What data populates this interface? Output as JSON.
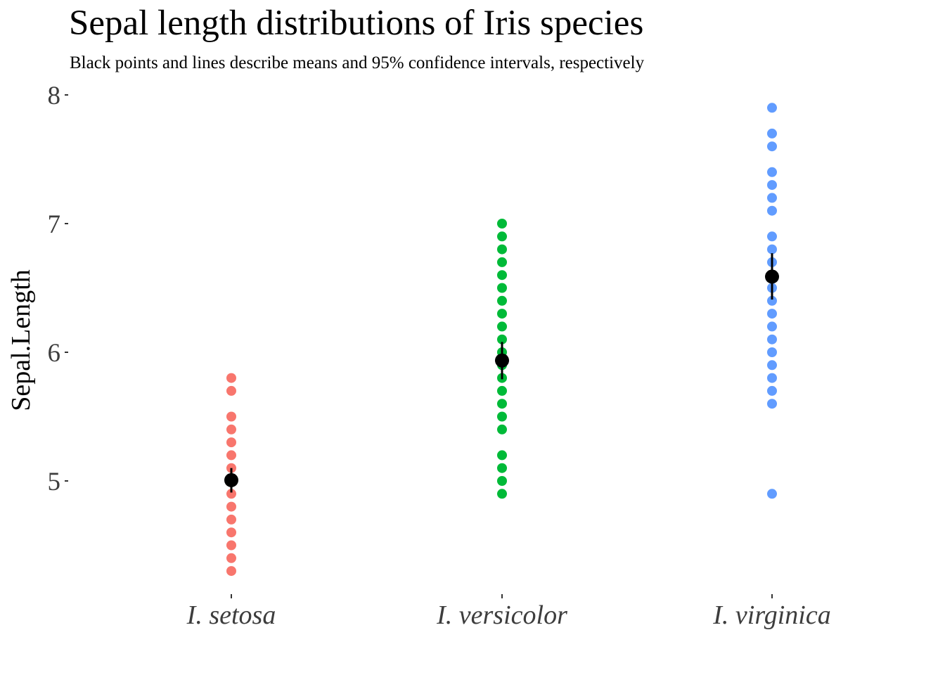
{
  "chart_data": {
    "type": "scatter",
    "title": "Sepal length distributions of Iris species",
    "subtitle": "Black points and lines describe means and 95% confidence intervals, respectively",
    "xlabel": "",
    "ylabel": "Sepal.Length",
    "ylim": [
      4.12,
      8.08
    ],
    "yticks": [
      "5",
      "6",
      "7",
      "8"
    ],
    "grid": false,
    "categories": [
      "I. setosa",
      "I. versicolor",
      "I. virginica"
    ],
    "series": [
      {
        "category": "I. setosa",
        "color": "#F8766D",
        "values": [
          4.3,
          4.4,
          4.5,
          4.6,
          4.7,
          4.8,
          4.9,
          5.0,
          5.1,
          5.2,
          5.3,
          5.4,
          5.5,
          5.7,
          5.8
        ],
        "mean": 5.006,
        "ci": [
          4.91,
          5.1
        ]
      },
      {
        "category": "I. versicolor",
        "color": "#00BA38",
        "values": [
          4.9,
          5.0,
          5.1,
          5.2,
          5.4,
          5.5,
          5.6,
          5.7,
          5.8,
          5.9,
          6.0,
          6.1,
          6.2,
          6.3,
          6.4,
          6.5,
          6.6,
          6.7,
          6.8,
          6.9,
          7.0
        ],
        "mean": 5.936,
        "ci": [
          5.79,
          6.08
        ]
      },
      {
        "category": "I. virginica",
        "color": "#619CFF",
        "values": [
          4.9,
          5.6,
          5.7,
          5.8,
          5.9,
          6.0,
          6.1,
          6.2,
          6.3,
          6.4,
          6.5,
          6.7,
          6.8,
          6.9,
          7.1,
          7.2,
          7.3,
          7.4,
          7.6,
          7.7,
          7.9
        ],
        "mean": 6.588,
        "ci": [
          6.41,
          6.77
        ]
      }
    ],
    "mean_color": "#000000"
  }
}
